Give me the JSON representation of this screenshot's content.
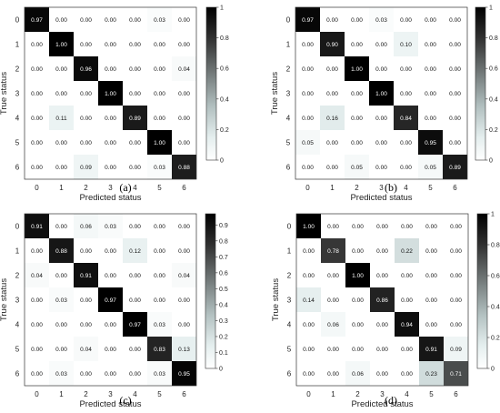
{
  "chart_data": [
    {
      "type": "heatmap",
      "caption": "(a)",
      "xlabel": "Predicted status",
      "ylabel": "True status",
      "x_ticks": [
        "0",
        "1",
        "2",
        "3",
        "4",
        "5",
        "6"
      ],
      "y_ticks": [
        "0",
        "1",
        "2",
        "3",
        "4",
        "5",
        "6"
      ],
      "matrix": [
        [
          0.97,
          0.0,
          0.0,
          0.0,
          0.0,
          0.03,
          0.0
        ],
        [
          0.0,
          1.0,
          0.0,
          0.0,
          0.0,
          0.0,
          0.0
        ],
        [
          0.0,
          0.0,
          0.96,
          0.0,
          0.0,
          0.0,
          0.04
        ],
        [
          0.0,
          0.0,
          0.0,
          1.0,
          0.0,
          0.0,
          0.0
        ],
        [
          0.0,
          0.11,
          0.0,
          0.0,
          0.89,
          0.0,
          0.0
        ],
        [
          0.0,
          0.0,
          0.0,
          0.0,
          0.0,
          1.0,
          0.0
        ],
        [
          0.0,
          0.0,
          0.09,
          0.0,
          0.0,
          0.03,
          0.88
        ]
      ],
      "colorbar_range": [
        0,
        1
      ],
      "colorbar_ticks": [
        "0",
        "0.2",
        "0.4",
        "0.6",
        "0.8",
        "1"
      ]
    },
    {
      "type": "heatmap",
      "caption": "(b)",
      "xlabel": "Predicted status",
      "ylabel": "True status",
      "x_ticks": [
        "0",
        "1",
        "2",
        "3",
        "4",
        "5",
        "6"
      ],
      "y_ticks": [
        "0",
        "1",
        "2",
        "3",
        "4",
        "5",
        "6"
      ],
      "matrix": [
        [
          0.97,
          0.0,
          0.0,
          0.03,
          0.0,
          0.0,
          0.0
        ],
        [
          0.0,
          0.9,
          0.0,
          0.0,
          0.1,
          0.0,
          0.0
        ],
        [
          0.0,
          0.0,
          1.0,
          0.0,
          0.0,
          0.0,
          0.0
        ],
        [
          0.0,
          0.0,
          0.0,
          1.0,
          0.0,
          0.0,
          0.0
        ],
        [
          0.0,
          0.16,
          0.0,
          0.0,
          0.84,
          0.0,
          0.0
        ],
        [
          0.05,
          0.0,
          0.0,
          0.0,
          0.0,
          0.95,
          0.0
        ],
        [
          0.0,
          0.0,
          0.05,
          0.0,
          0.0,
          0.05,
          0.89
        ]
      ],
      "colorbar_range": [
        0,
        1
      ],
      "colorbar_ticks": [
        "0",
        "0.2",
        "0.4",
        "0.6",
        "0.8",
        "1"
      ]
    },
    {
      "type": "heatmap",
      "caption": "(c)",
      "xlabel": "Predicted status",
      "ylabel": "True status",
      "x_ticks": [
        "0",
        "1",
        "2",
        "3",
        "4",
        "5",
        "6"
      ],
      "y_ticks": [
        "0",
        "1",
        "2",
        "3",
        "4",
        "5",
        "6"
      ],
      "matrix": [
        [
          0.91,
          0.0,
          0.06,
          0.03,
          0.0,
          0.0,
          0.0
        ],
        [
          0.0,
          0.88,
          0.0,
          0.0,
          0.12,
          0.0,
          0.0
        ],
        [
          0.04,
          0.0,
          0.91,
          0.0,
          0.0,
          0.0,
          0.04
        ],
        [
          0.0,
          0.03,
          0.0,
          0.97,
          0.0,
          0.0,
          0.0
        ],
        [
          0.0,
          0.0,
          0.0,
          0.0,
          0.97,
          0.03,
          0.0
        ],
        [
          0.0,
          0.0,
          0.04,
          0.0,
          0.0,
          0.83,
          0.13
        ],
        [
          0.0,
          0.03,
          0.0,
          0.0,
          0.0,
          0.03,
          0.95
        ]
      ],
      "colorbar_range": [
        0,
        0.97
      ],
      "colorbar_ticks": [
        "0",
        "0.1",
        "0.2",
        "0.3",
        "0.4",
        "0.5",
        "0.6",
        "0.7",
        "0.8",
        "0.9"
      ]
    },
    {
      "type": "heatmap",
      "caption": "(d)",
      "xlabel": "Predicted status",
      "ylabel": "True status",
      "x_ticks": [
        "0",
        "1",
        "2",
        "3",
        "4",
        "5",
        "6"
      ],
      "y_ticks": [
        "0",
        "1",
        "2",
        "3",
        "4",
        "5",
        "6"
      ],
      "matrix": [
        [
          1.0,
          0.0,
          0.0,
          0.0,
          0.0,
          0.0,
          0.0
        ],
        [
          0.0,
          0.78,
          0.0,
          0.0,
          0.22,
          0.0,
          0.0
        ],
        [
          0.0,
          0.0,
          1.0,
          0.0,
          0.0,
          0.0,
          0.0
        ],
        [
          0.14,
          0.0,
          0.0,
          0.86,
          0.0,
          0.0,
          0.0
        ],
        [
          0.0,
          0.06,
          0.0,
          0.0,
          0.94,
          0.0,
          0.0
        ],
        [
          0.0,
          0.0,
          0.0,
          0.0,
          0.0,
          0.91,
          0.09
        ],
        [
          0.0,
          0.0,
          0.06,
          0.0,
          0.0,
          0.23,
          0.71
        ]
      ],
      "colorbar_range": [
        0,
        1
      ],
      "colorbar_ticks": [
        "0",
        "0.2",
        "0.4",
        "0.6",
        "0.8",
        "1"
      ]
    }
  ]
}
